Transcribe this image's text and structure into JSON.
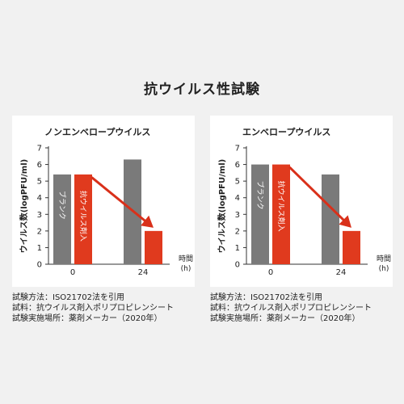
{
  "title": "抗ウイルス性試験",
  "colors": {
    "blank": "#7a7a7a",
    "treated": "#e03a1e",
    "arrow": "#d9301a",
    "axis": "#333333"
  },
  "chart_data": [
    {
      "type": "bar",
      "title": "ノンエンベロープウイルス",
      "ylabel": "ウイルス数(logPFU/ml)",
      "xlabel": "時間\n(h)",
      "xlabel_lines": [
        "時間",
        "(h)"
      ],
      "ylim": [
        0,
        7
      ],
      "yticks": [
        "0",
        "1",
        "2",
        "3",
        "4",
        "5",
        "6",
        "7"
      ],
      "categories": [
        "0",
        "24"
      ],
      "series": [
        {
          "name": "ブランク",
          "values": [
            5.4,
            6.3
          ]
        },
        {
          "name": "抗ウイルス剤入",
          "values": [
            5.4,
            2.0
          ]
        }
      ],
      "annotations": [
        "arrow from blank@0 to treated@24"
      ]
    },
    {
      "type": "bar",
      "title": "エンベロープウイルス",
      "ylabel": "ウイルス数(logPFU/ml)",
      "xlabel": "時間\n(h)",
      "xlabel_lines": [
        "時間",
        "(h)"
      ],
      "ylim": [
        0,
        7
      ],
      "yticks": [
        "0",
        "1",
        "2",
        "3",
        "4",
        "5",
        "6",
        "7"
      ],
      "categories": [
        "0",
        "24"
      ],
      "series": [
        {
          "name": "ブランク",
          "values": [
            6.0,
            5.4
          ]
        },
        {
          "name": "抗ウイルス剤入",
          "values": [
            6.0,
            2.0
          ]
        }
      ],
      "annotations": [
        "arrow from blank@0 to treated@24"
      ]
    }
  ],
  "notes": [
    [
      "試験方法：ISO21702法を引用",
      "試料：抗ウイルス剤入ポリプロピレンシート",
      "試験実施場所：薬剤メーカー（2020年）"
    ],
    [
      "試験方法：ISO21702法を引用",
      "試料：抗ウイルス剤入ポリプロピレンシート",
      "試験実施場所：薬剤メーカー（2020年）"
    ]
  ]
}
